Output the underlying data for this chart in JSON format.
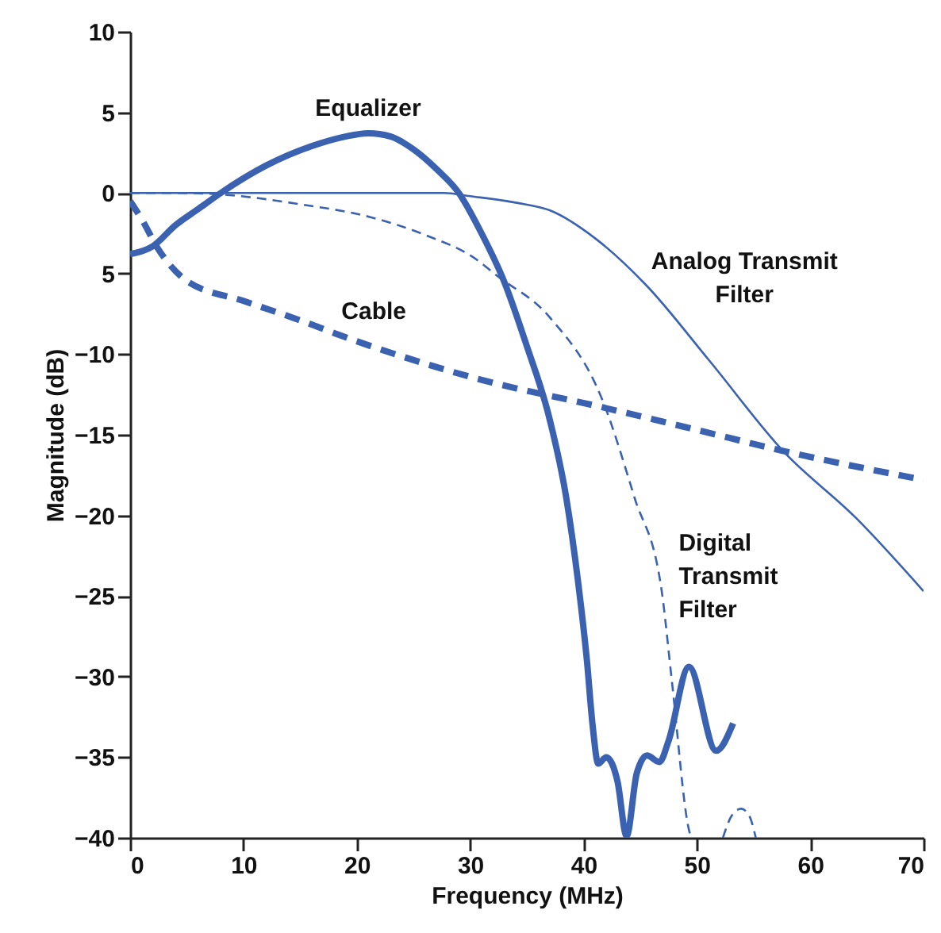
{
  "chart_data": {
    "type": "line",
    "xlabel": "Frequency (MHz)",
    "ylabel": "Magnitude (dB)",
    "xlim": [
      0,
      70
    ],
    "xticks": [
      0,
      10,
      20,
      30,
      40,
      50,
      60,
      70
    ],
    "ylim": [
      -40,
      10
    ],
    "yticks": [
      10,
      5,
      0,
      {
        "value": -5,
        "label": "5"
      },
      -10,
      -15,
      -20,
      -25,
      -30,
      -35,
      -40
    ],
    "grid": false,
    "marker": "none",
    "series": [
      {
        "name": "Equalizer",
        "color": "#3a62b0",
        "line_style": "solid",
        "x": [
          0,
          2,
          4,
          6,
          8,
          12,
          16,
          19,
          21,
          23,
          25,
          27,
          29,
          31,
          33,
          35,
          37,
          38.5,
          39.5,
          40.3,
          40.8,
          41.3,
          42,
          43,
          43.8,
          44.7,
          45.6,
          46.7,
          47.5,
          49.3,
          51.7,
          53.2
        ],
        "values": [
          -3.8,
          -3.3,
          -2,
          -1,
          0,
          1.7,
          2.9,
          3.5,
          3.7,
          3.5,
          2.7,
          1.5,
          0,
          -2.5,
          -5.5,
          -9.5,
          -14,
          -19,
          -24,
          -29,
          -33,
          -35.4,
          -35,
          -36.5,
          -39.9,
          -36,
          -34.9,
          -35.3,
          -34,
          -29.4,
          -34.6,
          -32.9
        ]
      },
      {
        "name": "Cable",
        "color": "#3a62b0",
        "line_style": "dashed",
        "x": [
          0,
          1,
          2.5,
          4.9,
          10,
          14.2,
          20,
          30.5,
          41.7,
          50,
          57.6,
          70
        ],
        "values": [
          -0.5,
          -1.6,
          -3.5,
          -5.4,
          -6.7,
          -7.7,
          -9.2,
          -11.5,
          -13.3,
          -14.7,
          -16,
          -17.8
        ]
      },
      {
        "name": "Analog Transmit Filter",
        "color": "#3a62b0",
        "line_style": "solid",
        "x": [
          0,
          25,
          27.7,
          30,
          34,
          37.1,
          41,
          45.5,
          51.1,
          57.6,
          64.1,
          70
        ],
        "values": [
          0,
          0,
          0,
          -0.2,
          -0.6,
          -1.1,
          -2.8,
          -5.7,
          -10.4,
          -16,
          -20.2,
          -24.7
        ]
      },
      {
        "name": "Digital Transmit Filter",
        "color": "#3a62b0",
        "line_style": "dashed",
        "x": [
          0,
          4,
          8.1,
          15,
          21.2,
          26,
          30.5,
          32.3,
          37,
          41.7,
          44.5,
          46.9,
          47.8,
          49.3,
          49.5,
          51,
          52.3,
          53.1,
          53.9,
          54.6,
          55.2
        ],
        "values": [
          0,
          0,
          -0.1,
          -0.7,
          -1.5,
          -2.6,
          -4.1,
          -5.1,
          -7.7,
          -12.9,
          -18.9,
          -24.7,
          -30.3,
          -39.5,
          -40,
          null,
          -40,
          -38.6,
          -38.2,
          -38.6,
          -40
        ]
      }
    ]
  }
}
